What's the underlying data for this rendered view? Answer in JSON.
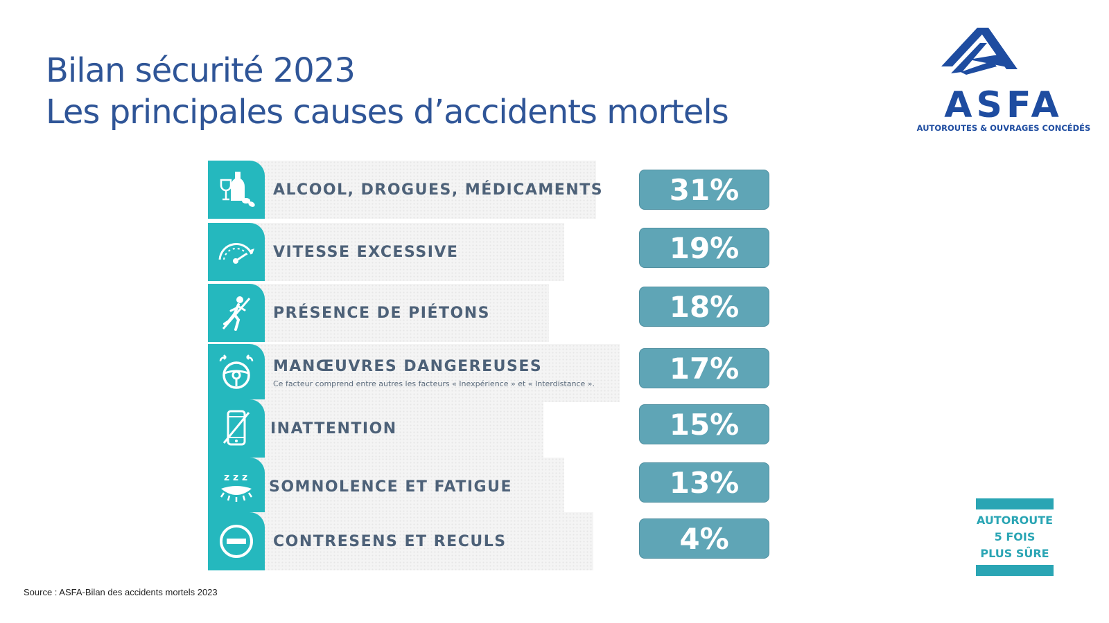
{
  "header": {
    "title": "Bilan sécurité 2023",
    "subtitle": "Les principales causes d’accidents mortels"
  },
  "logo": {
    "name": "ASFA",
    "tagline": "AUTOROUTES & OUVRAGES CONCÉDÉS"
  },
  "colors": {
    "title": "#2f5597",
    "icon_bg": "#25b8be",
    "percent_bg": "#5fa5b6",
    "label": "#4d6178",
    "logo_blue": "#1e4ca0"
  },
  "causes": [
    {
      "label": "ALCOOL, DROGUES, MÉDICAMENTS",
      "percent": "31%",
      "icon": "alcohol-drugs-icon"
    },
    {
      "label": "VITESSE EXCESSIVE",
      "percent": "19%",
      "icon": "speedometer-icon"
    },
    {
      "label": "PRÉSENCE DE PIÉTONS",
      "percent": "18%",
      "icon": "pedestrian-icon"
    },
    {
      "label": "MANŒUVRES DANGEREUSES",
      "note": "Ce facteur comprend entre autres les facteurs « Inexpérience » et « Interdistance ».",
      "percent": "17%",
      "icon": "steering-wheel-icon"
    },
    {
      "label": "INATTENTION",
      "percent": "15%",
      "icon": "phone-crossed-icon"
    },
    {
      "label": "SOMNOLENCE ET FATIGUE",
      "percent": "13%",
      "icon": "sleepy-eye-icon"
    },
    {
      "label": "CONTRESENS ET RECULS",
      "percent": "4%",
      "icon": "no-entry-icon"
    }
  ],
  "source": "Source : ASFA-Bilan des accidents mortels 2023",
  "badge": {
    "line1": "AUTOROUTE",
    "line2": "5 FOIS",
    "line3": "PLUS SÛRE"
  }
}
